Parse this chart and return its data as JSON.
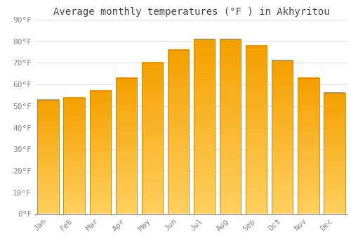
{
  "title": "Average monthly temperatures (°F ) in Akhyritou",
  "months": [
    "Jan",
    "Feb",
    "Mar",
    "Apr",
    "May",
    "Jun",
    "Jul",
    "Aug",
    "Sep",
    "Oct",
    "Nov",
    "Dec"
  ],
  "values": [
    53,
    54,
    57,
    63,
    70,
    76,
    81,
    81,
    78,
    71,
    63,
    56
  ],
  "bar_color_top": "#F5A800",
  "bar_color_bottom": "#FFD966",
  "bar_edge_color": "#C87000",
  "background_color": "#FFFFFF",
  "plot_bg_color": "#F8F8F8",
  "grid_color": "#E0E0E0",
  "ylim": [
    0,
    90
  ],
  "yticks": [
    0,
    10,
    20,
    30,
    40,
    50,
    60,
    70,
    80,
    90
  ],
  "ytick_labels": [
    "0°F",
    "10°F",
    "20°F",
    "30°F",
    "40°F",
    "50°F",
    "60°F",
    "70°F",
    "80°F",
    "90°F"
  ],
  "title_fontsize": 10,
  "tick_fontsize": 8,
  "tick_color": "#888888",
  "font_family": "monospace"
}
